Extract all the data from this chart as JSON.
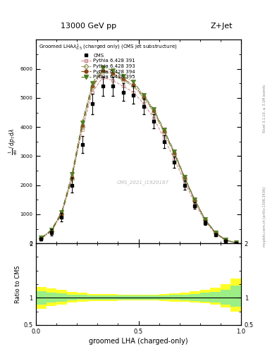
{
  "title_top": "13000 GeV pp",
  "title_right": "Z+Jet",
  "cms_label": "CMS_2021_I1920187",
  "rivet_label": "Rivet 3.1.10, ≥ 3.1M events",
  "mcplots_label": "mcplots.cern.ch [arXiv:1306.3436]",
  "xlabel": "groomed LHA (charged-only)",
  "ylabel_main": "1 / mathrm{d}N / mathrm{d}p_T mathrm{d}lambda",
  "ylabel2": "Ratio to CMS",
  "xlim": [
    0,
    1
  ],
  "ylim_main": [
    0,
    7000
  ],
  "ylim_ratio": [
    0.5,
    2.0
  ],
  "x_centers": [
    0.025,
    0.075,
    0.125,
    0.175,
    0.225,
    0.275,
    0.325,
    0.375,
    0.425,
    0.475,
    0.525,
    0.575,
    0.625,
    0.675,
    0.725,
    0.775,
    0.825,
    0.875,
    0.925,
    0.975
  ],
  "bin_width": 0.05,
  "cms_y": [
    150,
    380,
    900,
    2000,
    3400,
    4800,
    5400,
    5400,
    5200,
    5100,
    4700,
    4200,
    3500,
    2800,
    2000,
    1300,
    700,
    300,
    90,
    15
  ],
  "cms_yerr": [
    50,
    100,
    150,
    250,
    300,
    350,
    330,
    320,
    300,
    300,
    270,
    250,
    220,
    190,
    160,
    110,
    70,
    45,
    25,
    8
  ],
  "py391_y": [
    180,
    450,
    1050,
    2300,
    3900,
    5200,
    5700,
    5600,
    5400,
    5200,
    4800,
    4300,
    3600,
    2900,
    2100,
    1380,
    760,
    330,
    100,
    18
  ],
  "py393_y": [
    165,
    420,
    1000,
    2200,
    4000,
    5350,
    5900,
    5800,
    5600,
    5400,
    5000,
    4500,
    3800,
    3050,
    2200,
    1450,
    800,
    360,
    110,
    20
  ],
  "py394_y": [
    170,
    430,
    1020,
    2250,
    4050,
    5400,
    5950,
    5850,
    5650,
    5450,
    5050,
    4550,
    3850,
    3100,
    2250,
    1480,
    815,
    370,
    115,
    22
  ],
  "py395_y": [
    190,
    470,
    1080,
    2380,
    4150,
    5500,
    6050,
    5950,
    5750,
    5550,
    5100,
    4600,
    3900,
    3150,
    2280,
    1500,
    830,
    380,
    120,
    24
  ],
  "ratio_yellow_lo": [
    0.8,
    0.85,
    0.88,
    0.91,
    0.93,
    0.94,
    0.94,
    0.94,
    0.95,
    0.95,
    0.95,
    0.95,
    0.94,
    0.93,
    0.92,
    0.91,
    0.9,
    0.87,
    0.82,
    0.75
  ],
  "ratio_yellow_hi": [
    1.2,
    1.17,
    1.14,
    1.11,
    1.09,
    1.07,
    1.07,
    1.07,
    1.06,
    1.06,
    1.06,
    1.06,
    1.07,
    1.08,
    1.1,
    1.12,
    1.14,
    1.18,
    1.25,
    1.35
  ],
  "ratio_green_lo": [
    0.88,
    0.91,
    0.93,
    0.95,
    0.96,
    0.97,
    0.97,
    0.97,
    0.97,
    0.97,
    0.97,
    0.97,
    0.97,
    0.96,
    0.95,
    0.94,
    0.93,
    0.91,
    0.88,
    0.84
  ],
  "ratio_green_hi": [
    1.12,
    1.1,
    1.08,
    1.06,
    1.05,
    1.04,
    1.04,
    1.04,
    1.04,
    1.04,
    1.04,
    1.04,
    1.04,
    1.05,
    1.06,
    1.07,
    1.09,
    1.11,
    1.15,
    1.22
  ],
  "color_391": "#cc8888",
  "color_393": "#999966",
  "color_394": "#8B4513",
  "color_395": "#4d7a1f",
  "color_cms": "black",
  "legend_title": "Groomed LHA$\\lambda^{1}_{0.5}$ (charged only) (CMS jet substructure)"
}
